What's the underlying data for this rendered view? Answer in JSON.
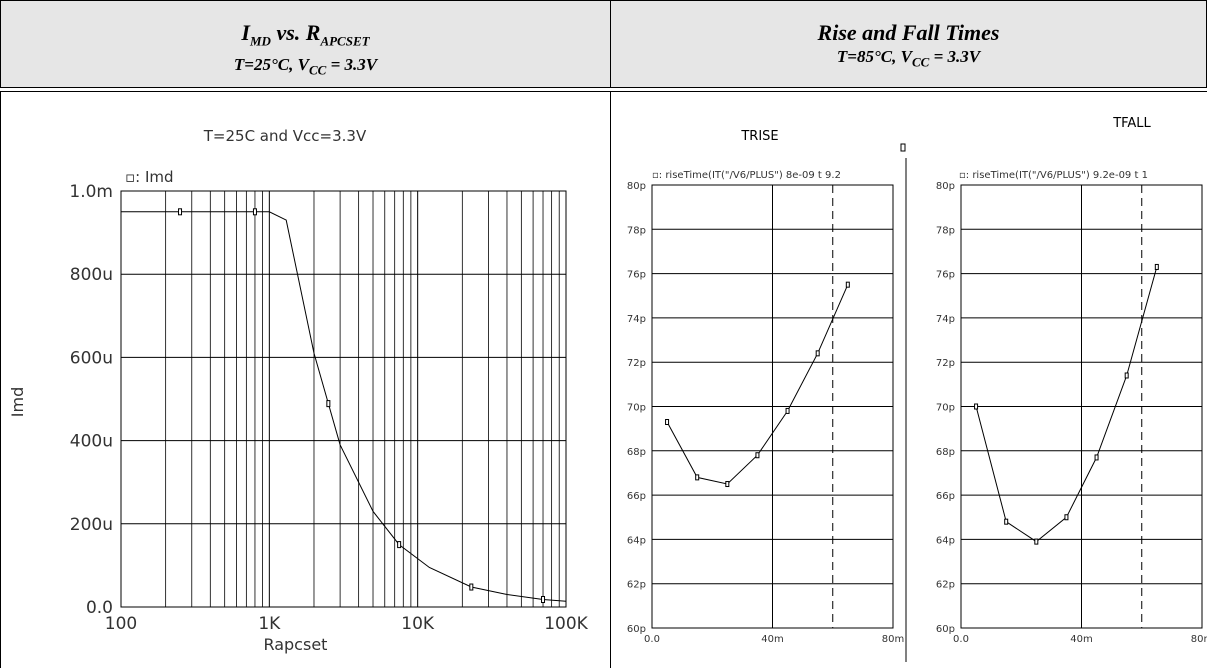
{
  "header_left": {
    "title_main": "I",
    "title_sub": "MD",
    "title_mid": " vs. R",
    "title_sub2": "APCSET",
    "cond_pre": "T=25°C, V",
    "cond_sub": "CC",
    "cond_post": " = 3.3V"
  },
  "header_right": {
    "title": "Rise and Fall Times",
    "cond_pre": "T=85°C, V",
    "cond_sub": "CC",
    "cond_post": " = 3.3V"
  },
  "chart_data": [
    {
      "type": "line",
      "title": "T=25C and Vcc=3.3V",
      "xlabel": "Rapcset",
      "ylabel": "Imd",
      "legend": "▫: Imd",
      "xscale": "log",
      "xlim": [
        100,
        100000
      ],
      "ylim": [
        0,
        0.001
      ],
      "x_ticks": [
        {
          "v": 100,
          "label": "100"
        },
        {
          "v": 1000,
          "label": "1K"
        },
        {
          "v": 10000,
          "label": "10K"
        },
        {
          "v": 100000,
          "label": "100K"
        }
      ],
      "y_ticks": [
        {
          "v": 0,
          "label": "0.0"
        },
        {
          "v": 0.0002,
          "label": "200u"
        },
        {
          "v": 0.0004,
          "label": "400u"
        },
        {
          "v": 0.0006,
          "label": "600u"
        },
        {
          "v": 0.0008,
          "label": "800u"
        },
        {
          "v": 0.001,
          "label": "1.0m"
        }
      ],
      "x": [
        100,
        250,
        800,
        1000,
        1300,
        2000,
        3000,
        5000,
        7500,
        12000,
        23000,
        40000,
        70000,
        100000
      ],
      "y": [
        0.00095,
        0.00095,
        0.00095,
        0.00095,
        0.00093,
        0.00061,
        0.00039,
        0.00023,
        0.00015,
        9.5e-05,
        4.8e-05,
        3e-05,
        1.8e-05,
        1.4e-05
      ],
      "markers_x": [
        250,
        800,
        2500,
        7500,
        23000,
        70000
      ],
      "grid": true
    },
    {
      "type": "line",
      "title": "TRISE",
      "legend": "▫: riseTime(IT(\"/V6/PLUS\") 8e-09 t 9.2",
      "xlim": [
        0,
        0.08
      ],
      "ylim": [
        6e-11,
        8e-11
      ],
      "x_ticks": [
        {
          "v": 0,
          "label": "0.0"
        },
        {
          "v": 0.04,
          "label": "40m"
        },
        {
          "v": 0.08,
          "label": "80m"
        }
      ],
      "y_ticks": [
        {
          "v": 6e-11,
          "label": "60p"
        },
        {
          "v": 6.2e-11,
          "label": "62p"
        },
        {
          "v": 6.4e-11,
          "label": "64p"
        },
        {
          "v": 6.6e-11,
          "label": "66p"
        },
        {
          "v": 6.8e-11,
          "label": "68p"
        },
        {
          "v": 7e-11,
          "label": "70p"
        },
        {
          "v": 7.2e-11,
          "label": "72p"
        },
        {
          "v": 7.4e-11,
          "label": "74p"
        },
        {
          "v": 7.6e-11,
          "label": "76p"
        },
        {
          "v": 7.8e-11,
          "label": "78p"
        },
        {
          "v": 8e-11,
          "label": "80p"
        }
      ],
      "x": [
        0.005,
        0.015,
        0.025,
        0.035,
        0.045,
        0.055,
        0.065
      ],
      "y": [
        6.93e-11,
        6.68e-11,
        6.65e-11,
        6.78e-11,
        6.98e-11,
        7.24e-11,
        7.55e-11
      ],
      "dashed_x": 0.06,
      "grid": true
    },
    {
      "type": "line",
      "title": "TFALL",
      "legend": "▫: riseTime(IT(\"/V6/PLUS\") 9.2e-09 t 1",
      "xlim": [
        0,
        0.08
      ],
      "ylim": [
        6e-11,
        8e-11
      ],
      "x_ticks": [
        {
          "v": 0,
          "label": "0.0"
        },
        {
          "v": 0.04,
          "label": "40m"
        },
        {
          "v": 0.08,
          "label": "80m"
        }
      ],
      "y_ticks": [
        {
          "v": 6e-11,
          "label": "60p"
        },
        {
          "v": 6.2e-11,
          "label": "62p"
        },
        {
          "v": 6.4e-11,
          "label": "64p"
        },
        {
          "v": 6.6e-11,
          "label": "66p"
        },
        {
          "v": 6.8e-11,
          "label": "68p"
        },
        {
          "v": 7e-11,
          "label": "70p"
        },
        {
          "v": 7.2e-11,
          "label": "72p"
        },
        {
          "v": 7.4e-11,
          "label": "74p"
        },
        {
          "v": 7.6e-11,
          "label": "76p"
        },
        {
          "v": 7.8e-11,
          "label": "78p"
        },
        {
          "v": 8e-11,
          "label": "80p"
        }
      ],
      "x": [
        0.005,
        0.015,
        0.025,
        0.035,
        0.045,
        0.055,
        0.065
      ],
      "y": [
        7e-11,
        6.48e-11,
        6.39e-11,
        6.5e-11,
        6.77e-11,
        7.14e-11,
        7.63e-11
      ],
      "dashed_x": 0.06,
      "grid": true
    }
  ]
}
